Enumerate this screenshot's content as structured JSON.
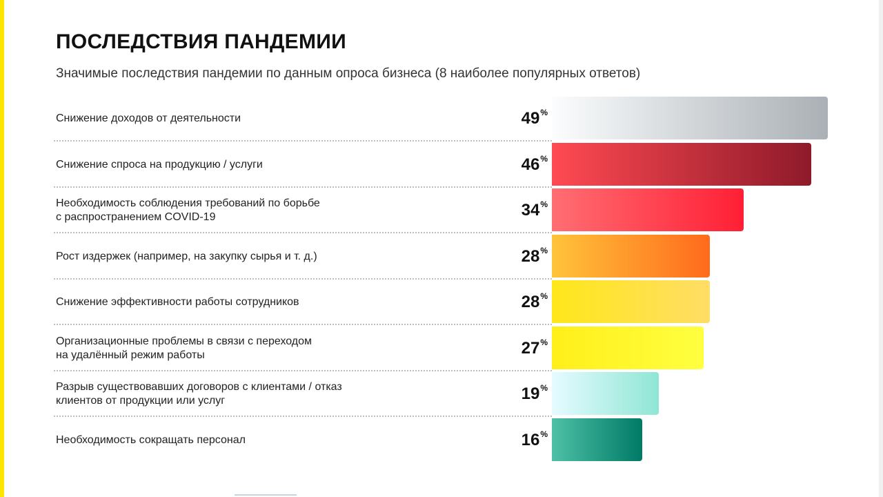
{
  "header": {
    "title": "ПОСЛЕДСТВИЯ ПАНДЕМИИ",
    "subtitle": "Значимые последствия пандемии по данным опроса бизнеса (8 наиболее популярных ответов)"
  },
  "colors": {
    "accent": "#ffe600"
  },
  "chart_data": {
    "type": "bar",
    "orientation": "horizontal",
    "title": "ПОСЛЕДСТВИЯ ПАНДЕМИИ",
    "subtitle": "Значимые последствия пандемии по данным опроса бизнеса (8 наиболее популярных ответов)",
    "unit": "%",
    "xlim": [
      0,
      49
    ],
    "grid": false,
    "categories": [
      "Снижение доходов от деятельности",
      "Снижение спроса на продукцию / услуги",
      "Необходимость соблюдения требований по борьбе\nс распространением COVID-19",
      "Рост издержек (например, на закупку сырья и т. д.)",
      "Снижение эффективности работы сотрудников",
      "Организационные проблемы в связи с переходом\nна удалённый режим работы",
      "Разрыв существовавших договоров с клиентами / отказ\nклиентов от продукции или услуг",
      "Необходимость сокращать персонал"
    ],
    "values": [
      49,
      46,
      34,
      28,
      28,
      27,
      19,
      16
    ],
    "bar_gradients": [
      [
        "#fbfdfe",
        "#aab0b5"
      ],
      [
        "#ff4a52",
        "#8e1a2a"
      ],
      [
        "#ff6e73",
        "#ff1f35"
      ],
      [
        "#ffc43a",
        "#ff6a1c"
      ],
      [
        "#ffe71a",
        "#ffdd66"
      ],
      [
        "#ffef1a",
        "#ffff40"
      ],
      [
        "#e6fbff",
        "#8fe6d4"
      ],
      [
        "#4ec0a6",
        "#007a66"
      ]
    ]
  }
}
